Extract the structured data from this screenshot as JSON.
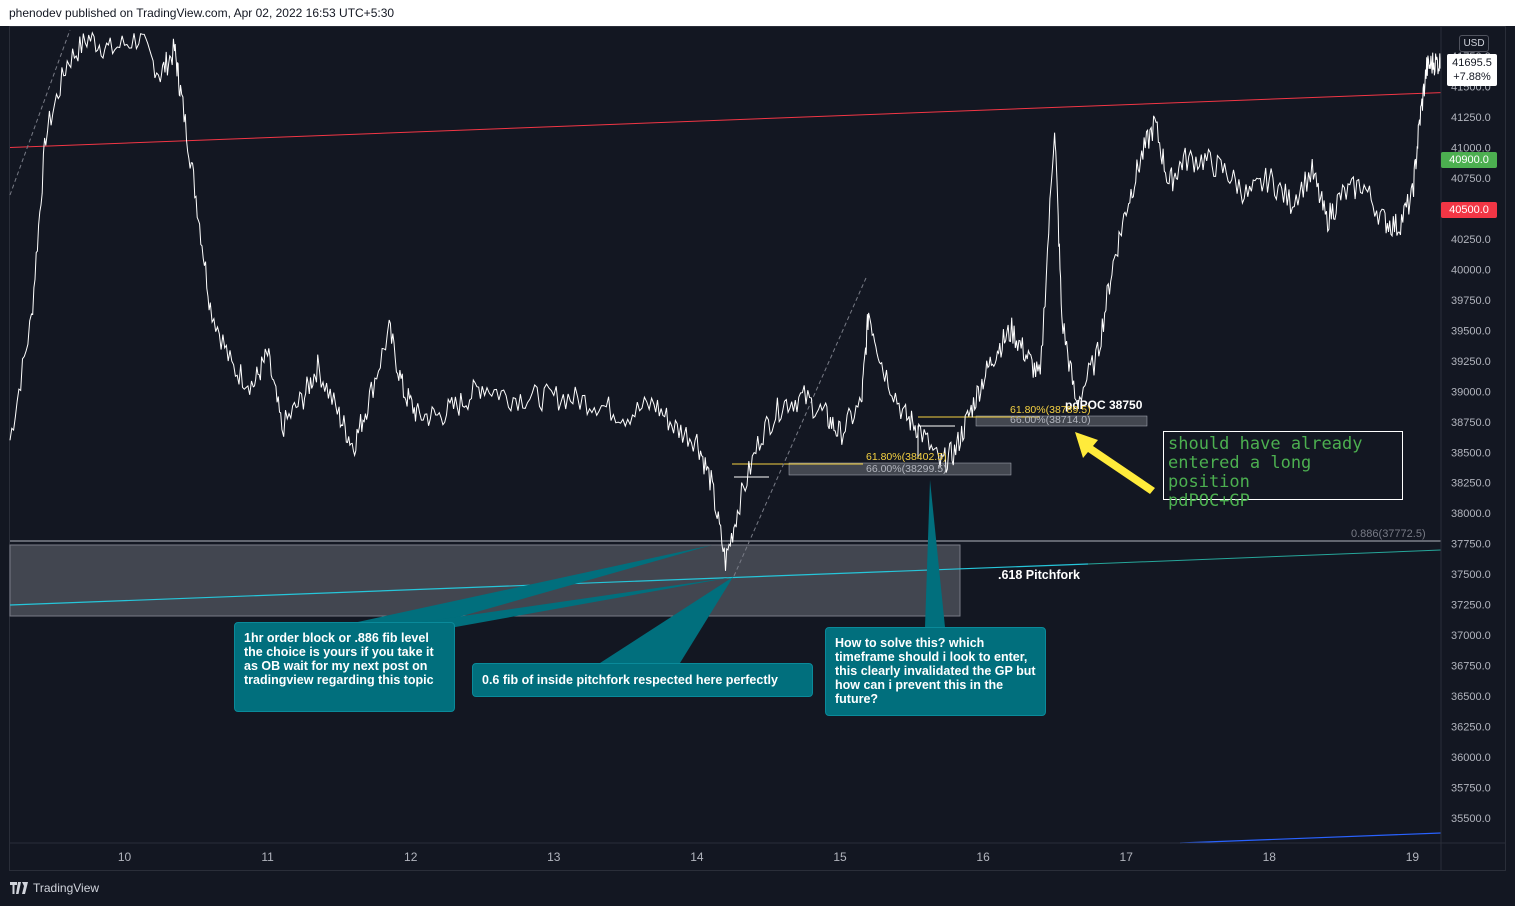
{
  "header": {
    "publish_line": "phenodev published on TradingView.com, Apr 02, 2022 16:53 UTC+5:30"
  },
  "footer": {
    "brand": "TradingView"
  },
  "price_scale": {
    "currency": "USD",
    "last_price": "41695.5",
    "last_change": "+7.88%",
    "tag_high": {
      "value": "40900.0",
      "color": "#4caf50"
    },
    "tag_low": {
      "value": "40500.0",
      "color": "#f23645"
    }
  },
  "annotations": {
    "callout_ob": "1hr order block or .886 fib level the choice is yours if you take it as OB wait for my next post on tradingview regarding this topic",
    "callout_pitchfork": "0.6 fib of inside pitchfork respected here perfectly",
    "callout_question": "How to solve this? which timeframe should i look to enter, this clearly invalidated the GP but how can i prevent this in the future?",
    "note_lines": [
      "should have already",
      "entered a long position",
      "pdPOC+GP"
    ],
    "pitchfork_label": ".618 Pitchfork",
    "fib_886_label": "0.886(37772.5)",
    "pdpoc_label": "pdPOC 38750",
    "fib1_618": "61.80%(38402.5)",
    "fib1_66": "66.00%(38299.5)",
    "fib2_618": "61.80%(38789.5)",
    "fib2_66": "66.00%(38714.0)"
  },
  "chart_data": {
    "type": "candlestick",
    "symbol_currency": "USD",
    "x_tick_labels": [
      "10",
      "11",
      "12",
      "13",
      "14",
      "15",
      "16",
      "17",
      "18",
      "19"
    ],
    "y_tick_labels": [
      "35500.0",
      "35750.0",
      "36000.0",
      "36250.0",
      "36500.0",
      "36750.0",
      "37000.0",
      "37250.0",
      "37500.0",
      "37750.0",
      "38000.0",
      "38250.0",
      "38500.0",
      "38750.0",
      "39000.0",
      "39250.0",
      "39500.0",
      "39750.0",
      "40000.0",
      "40250.0",
      "40750.0",
      "41000.0",
      "41250.0",
      "41500.0",
      "41750.0"
    ],
    "ylim": [
      35300,
      42050
    ],
    "xlim": [
      9.2,
      19.2
    ],
    "price_path": [
      [
        9.2,
        38600
      ],
      [
        9.35,
        39600
      ],
      [
        9.45,
        41100
      ],
      [
        9.6,
        41700
      ],
      [
        9.75,
        41900
      ],
      [
        9.9,
        41800
      ],
      [
        10.1,
        41900
      ],
      [
        10.25,
        41600
      ],
      [
        10.35,
        41800
      ],
      [
        10.4,
        41400
      ],
      [
        10.5,
        40600
      ],
      [
        10.6,
        39700
      ],
      [
        10.75,
        39200
      ],
      [
        10.9,
        39050
      ],
      [
        11.0,
        39300
      ],
      [
        11.1,
        38700
      ],
      [
        11.25,
        38950
      ],
      [
        11.35,
        39200
      ],
      [
        11.5,
        38800
      ],
      [
        11.6,
        38550
      ],
      [
        11.7,
        38900
      ],
      [
        11.85,
        39500
      ],
      [
        11.95,
        39000
      ],
      [
        12.05,
        38800
      ],
      [
        12.2,
        38800
      ],
      [
        12.35,
        38900
      ],
      [
        12.5,
        39050
      ],
      [
        12.7,
        38950
      ],
      [
        12.9,
        38950
      ],
      [
        13.1,
        38950
      ],
      [
        13.3,
        38900
      ],
      [
        13.5,
        38800
      ],
      [
        13.7,
        38900
      ],
      [
        13.85,
        38700
      ],
      [
        14.0,
        38600
      ],
      [
        14.1,
        38250
      ],
      [
        14.2,
        37600
      ],
      [
        14.3,
        38100
      ],
      [
        14.45,
        38650
      ],
      [
        14.6,
        38900
      ],
      [
        14.75,
        38950
      ],
      [
        14.9,
        38800
      ],
      [
        15.0,
        38650
      ],
      [
        15.15,
        38900
      ],
      [
        15.2,
        39650
      ],
      [
        15.3,
        39200
      ],
      [
        15.45,
        38800
      ],
      [
        15.55,
        38700
      ],
      [
        15.7,
        38400
      ],
      [
        15.8,
        38500
      ],
      [
        15.9,
        38800
      ],
      [
        16.0,
        39100
      ],
      [
        16.1,
        39350
      ],
      [
        16.2,
        39500
      ],
      [
        16.3,
        39300
      ],
      [
        16.4,
        39100
      ],
      [
        16.5,
        41200
      ],
      [
        16.55,
        39600
      ],
      [
        16.65,
        38900
      ],
      [
        16.8,
        39300
      ],
      [
        16.9,
        40000
      ],
      [
        17.0,
        40500
      ],
      [
        17.1,
        40900
      ],
      [
        17.2,
        41200
      ],
      [
        17.3,
        40700
      ],
      [
        17.4,
        40900
      ],
      [
        17.55,
        40900
      ],
      [
        17.7,
        40800
      ],
      [
        17.85,
        40600
      ],
      [
        18.0,
        40750
      ],
      [
        18.15,
        40550
      ],
      [
        18.3,
        40800
      ],
      [
        18.4,
        40400
      ],
      [
        18.5,
        40600
      ],
      [
        18.65,
        40700
      ],
      [
        18.8,
        40400
      ],
      [
        18.9,
        40350
      ],
      [
        19.0,
        40600
      ],
      [
        19.05,
        41200
      ],
      [
        19.1,
        41650
      ],
      [
        19.15,
        41700
      ],
      [
        19.2,
        41695
      ]
    ],
    "lines": {
      "red_trendline": [
        [
          9.2,
          41000
        ],
        [
          19.2,
          41450
        ]
      ],
      "pitchfork_618": [
        [
          9.2,
          37200
        ],
        [
          16.2,
          37600
        ]
      ],
      "fib_886": 37772.5,
      "pdpoc": 38750
    }
  }
}
